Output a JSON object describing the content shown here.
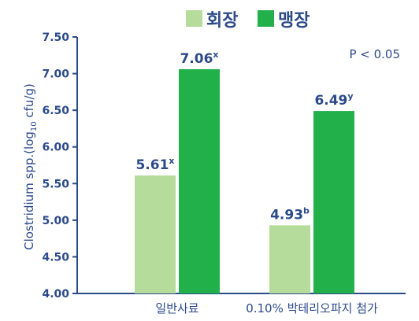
{
  "chart_data": {
    "type": "bar",
    "ylabel_main": "Clostridium spp.(log",
    "ylabel_sub": "10",
    "ylabel_end": " cfu/g)",
    "ylim": [
      4.0,
      7.5
    ],
    "yticks": [
      "4.00",
      "4.50",
      "5.00",
      "5.50",
      "6.00",
      "6.50",
      "7.00",
      "7.50"
    ],
    "categories": [
      "일반사료",
      "0.10% 박테리오파지 첨가"
    ],
    "series": [
      {
        "name": "회장",
        "color": "#b5dc9a",
        "values": [
          5.61,
          4.93
        ],
        "labels": [
          "5.61",
          "4.93"
        ],
        "superscripts": [
          "x",
          "b"
        ]
      },
      {
        "name": "맹장",
        "color": "#22b04b",
        "values": [
          7.06,
          6.49
        ],
        "labels": [
          "7.06",
          "6.49"
        ],
        "superscripts": [
          "x",
          "y"
        ]
      }
    ],
    "annotation": "P < 0.05",
    "grid": false,
    "legend_position": "top"
  },
  "colors": {
    "text": "#2c4a8a",
    "axis": "#2c4a8a"
  }
}
